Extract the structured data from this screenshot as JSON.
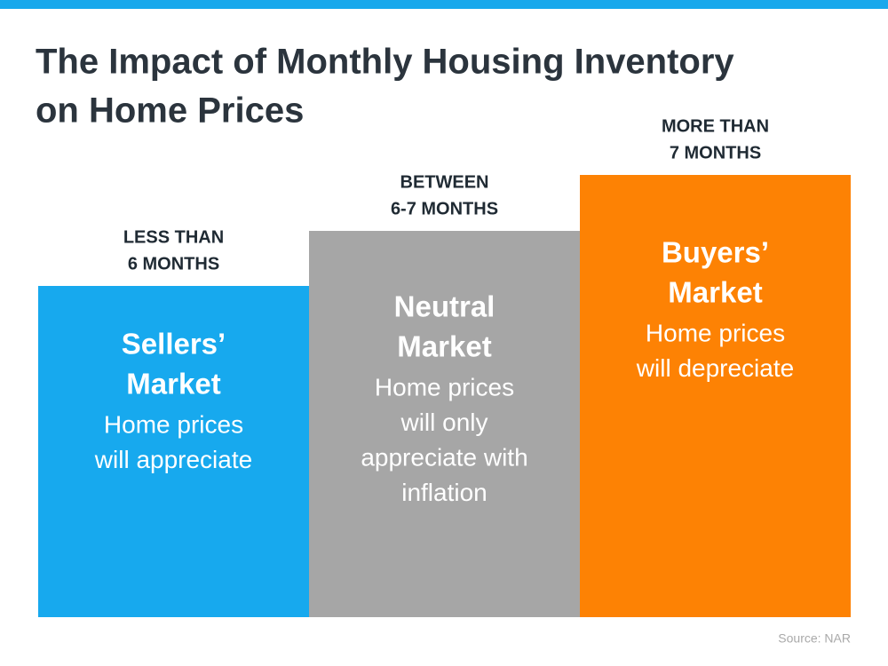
{
  "title": {
    "lines": [
      "The Impact of Monthly Housing Inventory",
      "on Home Prices"
    ]
  },
  "columns": [
    {
      "header": [
        "LESS THAN",
        "6 MONTHS"
      ],
      "name": [
        "Sellers’",
        "Market"
      ],
      "description": [
        "Home prices",
        "will appreciate"
      ]
    },
    {
      "header": [
        "BETWEEN",
        "6-7 MONTHS"
      ],
      "name": [
        "Neutral",
        "Market"
      ],
      "description": [
        "Home prices",
        "will only",
        "appreciate with",
        "inflation"
      ]
    },
    {
      "header": [
        "MORE THAN",
        "7 MONTHS"
      ],
      "name": [
        "Buyers’",
        "Market"
      ],
      "description": [
        "Home prices",
        "will depreciate"
      ]
    }
  ],
  "source": "Source: NAR"
}
